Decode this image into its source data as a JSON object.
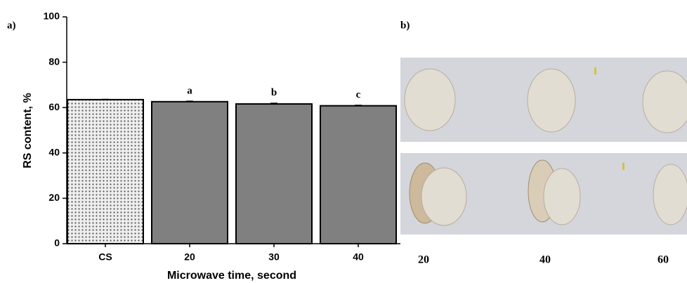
{
  "chart_data": {
    "type": "bar",
    "panel_label": "a)",
    "x_label": "Microwave time, second",
    "y_label": "RS content, %",
    "categories": [
      "CS",
      "20",
      "30",
      "40"
    ],
    "values": [
      63.5,
      62.6,
      61.6,
      60.8
    ],
    "errors": [
      0.2,
      0.3,
      0.4,
      0.3
    ],
    "significance_letters": [
      null,
      "a",
      "b",
      "c"
    ],
    "colors": [
      "#e4e4e4",
      "#808080",
      "#808080",
      "#808080"
    ],
    "hatch": [
      true,
      false,
      false,
      false
    ],
    "ylim": [
      0,
      100
    ],
    "yticks": [
      0,
      20,
      40,
      60,
      80,
      100
    ],
    "grid": false
  },
  "photo_panel": {
    "panel_label": "b)",
    "captions": [
      "20",
      "40",
      "60"
    ]
  }
}
